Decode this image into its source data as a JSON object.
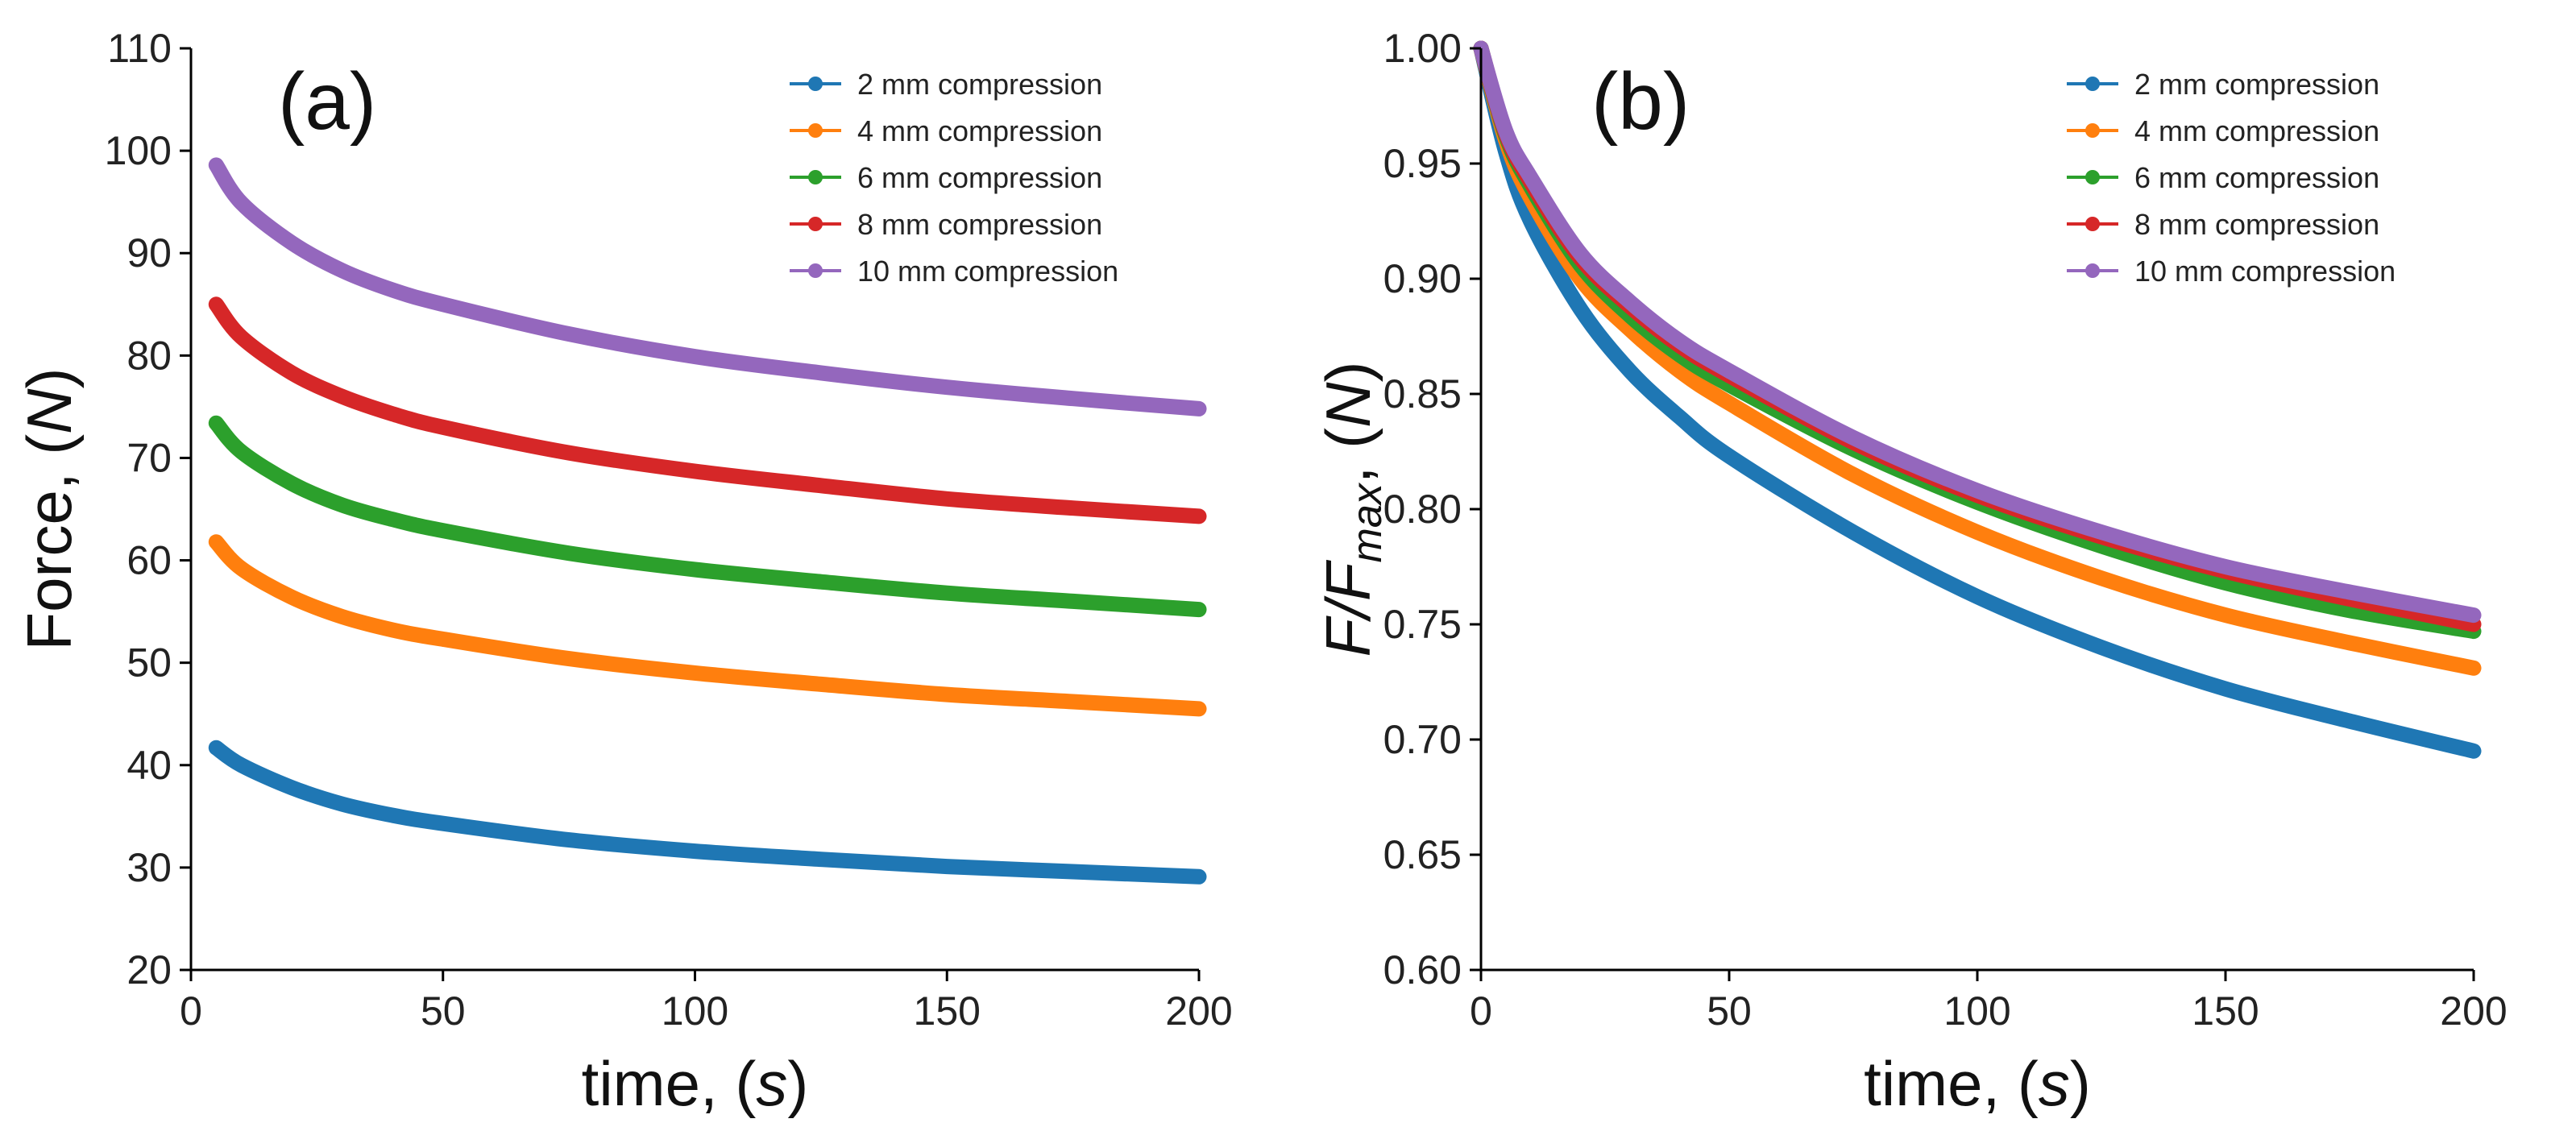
{
  "chart_data": [
    {
      "type": "line",
      "panel_label": "(a)",
      "xlabel": "time, ",
      "xlabel_unit": "s",
      "ylabel": "Force, ",
      "ylabel_unit": "N",
      "xlim": [
        0,
        200
      ],
      "ylim": [
        20,
        110
      ],
      "xticks": [
        0,
        50,
        100,
        150,
        200
      ],
      "yticks": [
        20,
        30,
        40,
        50,
        60,
        70,
        80,
        90,
        100,
        110
      ],
      "legend_position": "top-right",
      "grid": false,
      "series": [
        {
          "name": "2 mm compression",
          "color": "#1f77b4",
          "points": [
            [
              5,
              41.7
            ],
            [
              10,
              40.0
            ],
            [
              20,
              37.8
            ],
            [
              30,
              36.2
            ],
            [
              40,
              35.1
            ],
            [
              50,
              34.3
            ],
            [
              75,
              32.7
            ],
            [
              100,
              31.6
            ],
            [
              125,
              30.8
            ],
            [
              150,
              30.1
            ],
            [
              175,
              29.6
            ],
            [
              200,
              29.1
            ]
          ]
        },
        {
          "name": "4 mm compression",
          "color": "#ff7f0e",
          "points": [
            [
              5,
              61.8
            ],
            [
              10,
              59.2
            ],
            [
              20,
              56.4
            ],
            [
              30,
              54.5
            ],
            [
              40,
              53.2
            ],
            [
              50,
              52.3
            ],
            [
              75,
              50.4
            ],
            [
              100,
              49.0
            ],
            [
              125,
              47.9
            ],
            [
              150,
              46.9
            ],
            [
              175,
              46.2
            ],
            [
              200,
              45.5
            ]
          ]
        },
        {
          "name": "6 mm compression",
          "color": "#2ca02c",
          "points": [
            [
              5,
              73.4
            ],
            [
              10,
              70.6
            ],
            [
              20,
              67.5
            ],
            [
              30,
              65.4
            ],
            [
              40,
              64.0
            ],
            [
              50,
              62.9
            ],
            [
              75,
              60.7
            ],
            [
              100,
              59.1
            ],
            [
              125,
              57.9
            ],
            [
              150,
              56.8
            ],
            [
              175,
              56.0
            ],
            [
              200,
              55.2
            ]
          ]
        },
        {
          "name": "8 mm compression",
          "color": "#d62728",
          "points": [
            [
              5,
              85.0
            ],
            [
              10,
              81.8
            ],
            [
              20,
              78.3
            ],
            [
              30,
              76.0
            ],
            [
              40,
              74.3
            ],
            [
              50,
              73.0
            ],
            [
              75,
              70.5
            ],
            [
              100,
              68.7
            ],
            [
              125,
              67.3
            ],
            [
              150,
              66.0
            ],
            [
              175,
              65.1
            ],
            [
              200,
              64.3
            ]
          ]
        },
        {
          "name": "10 mm compression",
          "color": "#9467bd",
          "points": [
            [
              5,
              98.6
            ],
            [
              10,
              94.9
            ],
            [
              20,
              91.0
            ],
            [
              30,
              88.3
            ],
            [
              40,
              86.4
            ],
            [
              50,
              85.0
            ],
            [
              75,
              82.1
            ],
            [
              100,
              79.9
            ],
            [
              125,
              78.3
            ],
            [
              150,
              76.9
            ],
            [
              175,
              75.8
            ],
            [
              200,
              74.8
            ]
          ]
        }
      ]
    },
    {
      "type": "line",
      "panel_label": "(b)",
      "xlabel": "time, ",
      "xlabel_unit": "s",
      "ylabel_main": "F/F",
      "ylabel_sub": "max",
      "ylabel_rest": ",  (",
      "ylabel_unit": "N",
      "xlim": [
        0,
        200
      ],
      "ylim": [
        0.6,
        1.0
      ],
      "xticks": [
        0,
        50,
        100,
        150,
        200
      ],
      "yticks": [
        0.6,
        0.65,
        0.7,
        0.75,
        0.8,
        0.85,
        0.9,
        0.95,
        1.0
      ],
      "legend_position": "top-right",
      "grid": false,
      "series": [
        {
          "name": "2 mm compression",
          "color": "#1f77b4",
          "points": [
            [
              0,
              1.0
            ],
            [
              5,
              0.955
            ],
            [
              10,
              0.925
            ],
            [
              20,
              0.887
            ],
            [
              30,
              0.86
            ],
            [
              40,
              0.84
            ],
            [
              50,
              0.823
            ],
            [
              75,
              0.79
            ],
            [
              100,
              0.762
            ],
            [
              125,
              0.74
            ],
            [
              150,
              0.722
            ],
            [
              175,
              0.708
            ],
            [
              200,
              0.695
            ]
          ]
        },
        {
          "name": "4 mm compression",
          "color": "#ff7f0e",
          "points": [
            [
              0,
              1.0
            ],
            [
              5,
              0.96
            ],
            [
              10,
              0.935
            ],
            [
              20,
              0.9
            ],
            [
              30,
              0.878
            ],
            [
              40,
              0.86
            ],
            [
              50,
              0.846
            ],
            [
              75,
              0.815
            ],
            [
              100,
              0.79
            ],
            [
              125,
              0.77
            ],
            [
              150,
              0.754
            ],
            [
              175,
              0.742
            ],
            [
              200,
              0.731
            ]
          ]
        },
        {
          "name": "6 mm compression",
          "color": "#2ca02c",
          "points": [
            [
              0,
              1.0
            ],
            [
              5,
              0.962
            ],
            [
              10,
              0.94
            ],
            [
              20,
              0.906
            ],
            [
              30,
              0.884
            ],
            [
              40,
              0.867
            ],
            [
              50,
              0.854
            ],
            [
              75,
              0.826
            ],
            [
              100,
              0.803
            ],
            [
              125,
              0.784
            ],
            [
              150,
              0.768
            ],
            [
              175,
              0.756
            ],
            [
              200,
              0.747
            ]
          ]
        },
        {
          "name": "8 mm compression",
          "color": "#d62728",
          "points": [
            [
              0,
              1.0
            ],
            [
              5,
              0.963
            ],
            [
              10,
              0.942
            ],
            [
              20,
              0.909
            ],
            [
              30,
              0.888
            ],
            [
              40,
              0.871
            ],
            [
              50,
              0.858
            ],
            [
              75,
              0.829
            ],
            [
              100,
              0.806
            ],
            [
              125,
              0.788
            ],
            [
              150,
              0.773
            ],
            [
              175,
              0.761
            ],
            [
              200,
              0.75
            ]
          ]
        },
        {
          "name": "10 mm compression",
          "color": "#9467bd",
          "points": [
            [
              0,
              1.0
            ],
            [
              5,
              0.964
            ],
            [
              10,
              0.944
            ],
            [
              20,
              0.911
            ],
            [
              30,
              0.89
            ],
            [
              40,
              0.873
            ],
            [
              50,
              0.86
            ],
            [
              75,
              0.831
            ],
            [
              100,
              0.808
            ],
            [
              125,
              0.79
            ],
            [
              150,
              0.775
            ],
            [
              175,
              0.764
            ],
            [
              200,
              0.754
            ]
          ]
        }
      ]
    }
  ]
}
